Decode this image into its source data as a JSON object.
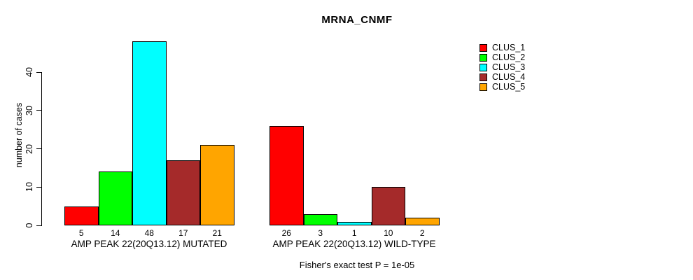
{
  "chart_data": {
    "type": "bar",
    "title": "MRNA_CNMF",
    "ylabel": "number of cases",
    "xlabel": "",
    "ylim": [
      0,
      40
    ],
    "yticks": [
      0,
      10,
      20,
      30,
      40
    ],
    "grid": false,
    "legend_position": "right",
    "bar_value_labels_shown": true,
    "series": [
      {
        "name": "CLUS_1",
        "color": "#ff0000"
      },
      {
        "name": "CLUS_2",
        "color": "#00ff00"
      },
      {
        "name": "CLUS_3",
        "color": "#00ffff"
      },
      {
        "name": "CLUS_4",
        "color": "#a52a2a"
      },
      {
        "name": "CLUS_5",
        "color": "#ffa500"
      }
    ],
    "groups": [
      {
        "label": "AMP PEAK 22(20Q13.12) MUTATED",
        "values": [
          5,
          14,
          48,
          17,
          21
        ]
      },
      {
        "label": "AMP PEAK 22(20Q13.12) WILD-TYPE",
        "values": [
          26,
          3,
          1,
          10,
          2
        ]
      }
    ],
    "note": "Fisher's exact test P = 1e-05"
  }
}
